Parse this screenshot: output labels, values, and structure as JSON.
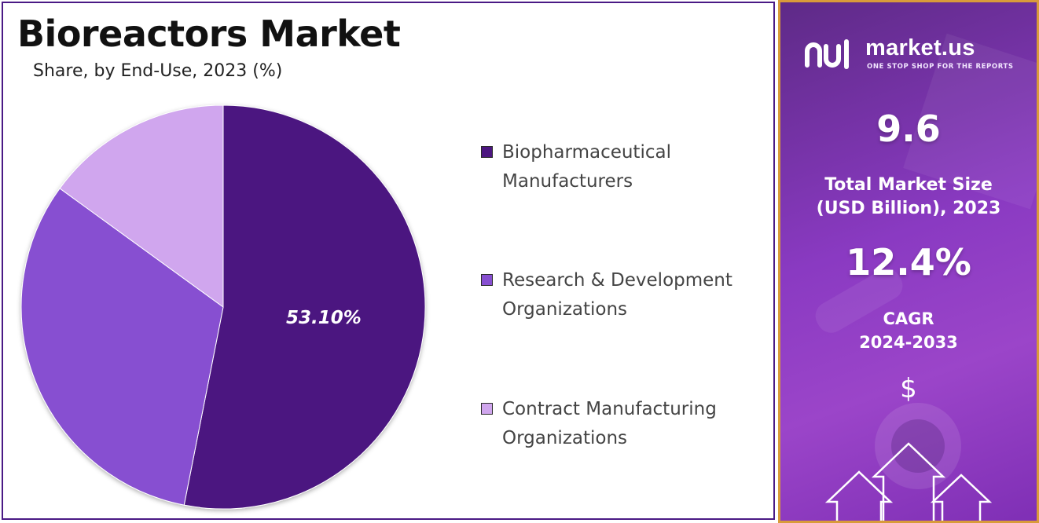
{
  "chart_data": {
    "type": "pie",
    "title": "Bioreactors Market",
    "subtitle": "Share, by End-Use, 2023 (%)",
    "categories": [
      "Biopharmaceutical Manufacturers",
      "Research & Development Organizations",
      "Contract Manufacturing Organizations"
    ],
    "values": [
      53.1,
      31.9,
      15.0
    ],
    "colors": [
      "#4c1680",
      "#874fd1",
      "#d0a6ee"
    ],
    "data_labels": [
      "53.10%",
      "",
      ""
    ],
    "legend_position": "right"
  },
  "legend": [
    {
      "label": "Biopharmaceutical\nManufacturers",
      "color": "#4c1680"
    },
    {
      "label": "Research & Development\nOrganizations",
      "color": "#874fd1"
    },
    {
      "label": "Contract Manufacturing\nOrganizations",
      "color": "#d0a6ee"
    }
  ],
  "sidebar": {
    "brand": "market.us",
    "tagline": "ONE STOP SHOP FOR THE REPORTS",
    "market_size_value": "9.6",
    "market_size_label": "Total Market Size\n(USD Billion), 2023",
    "cagr_value": "12.4%",
    "cagr_label": "CAGR\n2024-2033",
    "currency_symbol": "$"
  }
}
